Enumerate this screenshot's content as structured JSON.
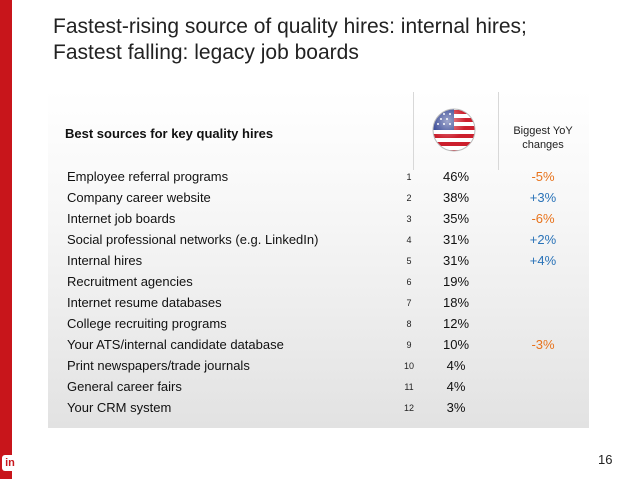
{
  "title_line1": "Fastest-rising source of quality hires: internal hires;",
  "title_line2": "Fastest falling: legacy job boards",
  "table": {
    "label": "Best sources for key quality hires",
    "flag_icon": "us-flag-icon",
    "yoy_header_line1": "Biggest YoY",
    "yoy_header_line2": "changes",
    "rows": [
      {
        "name": "Employee referral programs",
        "rank": "1",
        "pct": "46%",
        "yoy": "-5%"
      },
      {
        "name": "Company career website",
        "rank": "2",
        "pct": "38%",
        "yoy": "+3%"
      },
      {
        "name": "Internet job boards",
        "rank": "3",
        "pct": "35%",
        "yoy": "-6%"
      },
      {
        "name": "Social professional networks (e.g. LinkedIn)",
        "rank": "4",
        "pct": "31%",
        "yoy": "+2%"
      },
      {
        "name": "Internal hires",
        "rank": "5",
        "pct": "31%",
        "yoy": "+4%"
      },
      {
        "name": "Recruitment agencies",
        "rank": "6",
        "pct": "19%",
        "yoy": ""
      },
      {
        "name": "Internet resume databases",
        "rank": "7",
        "pct": "18%",
        "yoy": ""
      },
      {
        "name": "College recruiting programs",
        "rank": "8",
        "pct": "12%",
        "yoy": ""
      },
      {
        "name": "Your ATS/internal candidate database",
        "rank": "9",
        "pct": "10%",
        "yoy": "-3%"
      },
      {
        "name": "Print newspapers/trade journals",
        "rank": "10",
        "pct": "4%",
        "yoy": ""
      },
      {
        "name": "General career fairs",
        "rank": "11",
        "pct": "4%",
        "yoy": ""
      },
      {
        "name": "Your CRM system",
        "rank": "12",
        "pct": "3%",
        "yoy": ""
      }
    ]
  },
  "colors": {
    "accent_red": "#c8151b",
    "negative": "#e8731c",
    "positive": "#2a73b8"
  },
  "footer": {
    "page_number": "16",
    "logo_text": "in"
  }
}
